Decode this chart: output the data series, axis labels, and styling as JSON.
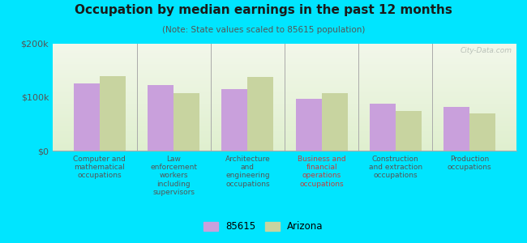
{
  "title": "Occupation by median earnings in the past 12 months",
  "subtitle": "(Note: State values scaled to 85615 population)",
  "categories": [
    "Computer and\nmathematical\noccupations",
    "Law\nenforcement\nworkers\nincluding\nsupervisors",
    "Architecture\nand\nengineering\noccupations",
    "Business and\nfinancial\noperations\noccupations",
    "Construction\nand extraction\noccupations",
    "Production\noccupations"
  ],
  "values_85615": [
    125000,
    122000,
    115000,
    97000,
    88000,
    82000
  ],
  "values_arizona": [
    140000,
    107000,
    138000,
    107000,
    75000,
    70000
  ],
  "color_85615": "#c9a0dc",
  "color_arizona": "#c8d4a0",
  "background_color": "#00e5ff",
  "ylim": [
    0,
    200000
  ],
  "yticks": [
    0,
    100000,
    200000
  ],
  "ytick_labels": [
    "$0",
    "$100k",
    "$200k"
  ],
  "legend_labels": [
    "85615",
    "Arizona"
  ],
  "watermark": "City-Data.com",
  "title_color": "#1a1a1a",
  "subtitle_color": "#555555",
  "tick_label_color": "#555555",
  "xticklabel_color_special": "#c04040",
  "xticklabel_color_special_index": 3
}
